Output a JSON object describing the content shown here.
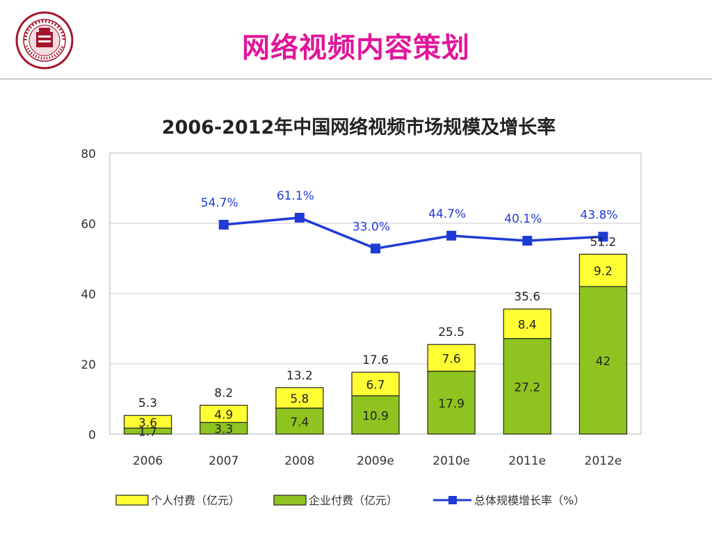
{
  "slide": {
    "title": "网络视频内容策划",
    "logo_icon": "university-seal-icon"
  },
  "chart_data": {
    "type": "bar",
    "title": "2006-2012年中国网络视频市场规模及增长率",
    "categories": [
      "2006",
      "2007",
      "2008",
      "2009e",
      "2010e",
      "2011e",
      "2012e"
    ],
    "series": [
      {
        "name": "企业付费（亿元）",
        "kind": "stacked-bar",
        "color": "#8fc31f",
        "values": [
          1.7,
          3.3,
          7.4,
          10.9,
          17.9,
          27.2,
          42.0
        ]
      },
      {
        "name": "个人付费（亿元）",
        "kind": "stacked-bar",
        "color": "#ffff33",
        "values": [
          3.6,
          4.9,
          5.8,
          6.7,
          7.6,
          8.4,
          9.2
        ]
      }
    ],
    "totals": [
      5.3,
      8.2,
      13.2,
      17.6,
      25.5,
      35.6,
      51.2
    ],
    "growth": {
      "name": "总体规模增长率（%）",
      "kind": "line",
      "color": "#1f3bd6",
      "labels": [
        null,
        "54.7%",
        "61.1%",
        "33.0%",
        "44.7%",
        "40.1%",
        "43.8%"
      ],
      "values": [
        null,
        54.7,
        61.1,
        33.0,
        44.7,
        40.1,
        43.8
      ]
    },
    "ylim": [
      0,
      80
    ],
    "yticks": [
      0,
      20,
      40,
      60,
      80
    ],
    "grid": true,
    "legend_position": "bottom"
  }
}
